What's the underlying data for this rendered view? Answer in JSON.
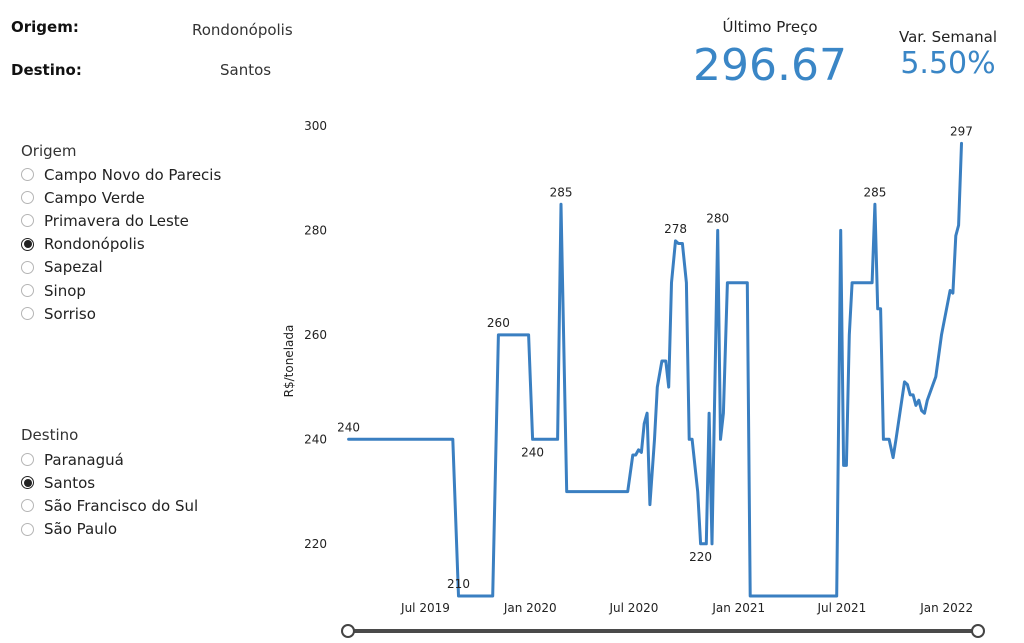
{
  "header": {
    "origin_label": "Origem:",
    "origin_value": "Rondonópolis",
    "destination_label": "Destino:",
    "destination_value": "Santos",
    "last_price_label": "Último Preço",
    "last_price_value": "296.67",
    "weekly_var_label": "Var. Semanal",
    "weekly_var_value": "5.50%"
  },
  "origin_group": {
    "title": "Origem",
    "options": [
      {
        "label": "Campo Novo do Parecis",
        "selected": false
      },
      {
        "label": "Campo Verde",
        "selected": false
      },
      {
        "label": "Primavera do Leste",
        "selected": false
      },
      {
        "label": "Rondonópolis",
        "selected": true
      },
      {
        "label": "Sapezal",
        "selected": false
      },
      {
        "label": "Sinop",
        "selected": false
      },
      {
        "label": "Sorriso",
        "selected": false
      }
    ]
  },
  "destination_group": {
    "title": "Destino",
    "options": [
      {
        "label": "Paranaguá",
        "selected": false
      },
      {
        "label": "Santos",
        "selected": true
      },
      {
        "label": "São Francisco do Sul",
        "selected": false
      },
      {
        "label": "São Paulo",
        "selected": false
      }
    ]
  },
  "colors": {
    "accent": "#3a86c6",
    "line": "#3a7fc1"
  },
  "chart_data": {
    "type": "line",
    "ylabel": "R$/tonelada",
    "xlabel": "",
    "ylim": [
      210,
      300
    ],
    "yticks": [
      220,
      240,
      260,
      280,
      300
    ],
    "xlim": [
      "2019-02-15",
      "2022-02-25"
    ],
    "xticks": [
      {
        "date": "2019-07-01",
        "label": "Jul 2019"
      },
      {
        "date": "2020-01-01",
        "label": "Jan 2020"
      },
      {
        "date": "2020-07-01",
        "label": "Jul 2020"
      },
      {
        "date": "2021-01-01",
        "label": "Jan 2021"
      },
      {
        "date": "2021-07-01",
        "label": "Jul 2021"
      },
      {
        "date": "2022-01-01",
        "label": "Jan 2022"
      }
    ],
    "grid": false,
    "series": [
      {
        "points": [
          [
            "2019-02-16",
            240
          ],
          [
            "2019-08-18",
            240
          ],
          [
            "2019-08-28",
            210
          ],
          [
            "2019-10-27",
            210
          ],
          [
            "2019-11-06",
            260
          ],
          [
            "2019-12-29",
            260
          ],
          [
            "2020-01-05",
            240
          ],
          [
            "2020-02-18",
            240
          ],
          [
            "2020-02-24",
            285
          ],
          [
            "2020-03-05",
            230
          ],
          [
            "2020-06-20",
            230
          ],
          [
            "2020-06-29",
            237
          ],
          [
            "2020-07-04",
            237
          ],
          [
            "2020-07-09",
            238
          ],
          [
            "2020-07-14",
            237.5
          ],
          [
            "2020-07-19",
            243
          ],
          [
            "2020-07-24",
            245
          ],
          [
            "2020-07-29",
            227.5
          ],
          [
            "2020-08-06",
            240
          ],
          [
            "2020-08-11",
            250
          ],
          [
            "2020-08-19",
            255
          ],
          [
            "2020-08-26",
            255
          ],
          [
            "2020-08-31",
            250
          ],
          [
            "2020-09-05",
            270
          ],
          [
            "2020-09-12",
            278
          ],
          [
            "2020-09-17",
            277.5
          ],
          [
            "2020-09-24",
            277.5
          ],
          [
            "2020-10-01",
            270
          ],
          [
            "2020-10-06",
            240
          ],
          [
            "2020-10-11",
            240
          ],
          [
            "2020-10-21",
            230
          ],
          [
            "2020-10-26",
            220
          ],
          [
            "2020-11-05",
            220
          ],
          [
            "2020-11-10",
            245
          ],
          [
            "2020-11-15",
            220
          ],
          [
            "2020-11-25",
            280
          ],
          [
            "2020-11-30",
            240
          ],
          [
            "2020-12-05",
            245
          ],
          [
            "2020-12-12",
            270
          ],
          [
            "2021-01-16",
            270
          ],
          [
            "2021-01-21",
            210
          ],
          [
            "2021-06-22",
            210
          ],
          [
            "2021-06-29",
            280
          ],
          [
            "2021-07-04",
            235
          ],
          [
            "2021-07-09",
            235
          ],
          [
            "2021-07-14",
            260
          ],
          [
            "2021-07-19",
            270
          ],
          [
            "2021-08-23",
            270
          ],
          [
            "2021-08-28",
            285
          ],
          [
            "2021-09-02",
            265
          ],
          [
            "2021-09-07",
            265
          ],
          [
            "2021-09-12",
            240
          ],
          [
            "2021-09-22",
            240
          ],
          [
            "2021-09-29",
            236.5
          ],
          [
            "2021-10-04",
            240
          ],
          [
            "2021-10-19",
            251
          ],
          [
            "2021-10-24",
            250.5
          ],
          [
            "2021-10-29",
            248.5
          ],
          [
            "2021-11-03",
            248.5
          ],
          [
            "2021-11-08",
            246.5
          ],
          [
            "2021-11-13",
            247.5
          ],
          [
            "2021-11-18",
            245.5
          ],
          [
            "2021-11-23",
            245
          ],
          [
            "2021-11-28",
            247.5
          ],
          [
            "2021-12-13",
            252
          ],
          [
            "2021-12-23",
            260
          ],
          [
            "2022-01-07",
            268.5
          ],
          [
            "2022-01-12",
            268
          ],
          [
            "2022-01-17",
            279
          ],
          [
            "2022-01-22",
            281
          ],
          [
            "2022-01-27",
            296.67
          ]
        ]
      }
    ],
    "annotations": [
      {
        "date": "2019-02-16",
        "value": 240,
        "label": "240",
        "pos": "above"
      },
      {
        "date": "2019-08-28",
        "value": 210,
        "label": "210",
        "pos": "above"
      },
      {
        "date": "2019-11-06",
        "value": 260,
        "label": "260",
        "pos": "above"
      },
      {
        "date": "2020-01-05",
        "value": 240,
        "label": "240",
        "pos": "below"
      },
      {
        "date": "2020-02-24",
        "value": 285,
        "label": "285",
        "pos": "above"
      },
      {
        "date": "2020-09-12",
        "value": 278,
        "label": "278",
        "pos": "above"
      },
      {
        "date": "2020-10-26",
        "value": 220,
        "label": "220",
        "pos": "below"
      },
      {
        "date": "2020-11-25",
        "value": 280,
        "label": "280",
        "pos": "above"
      },
      {
        "date": "2021-08-28",
        "value": 285,
        "label": "285",
        "pos": "above"
      },
      {
        "date": "2022-01-27",
        "value": 296.67,
        "label": "297",
        "pos": "above"
      }
    ],
    "range_slider": {
      "start": "2019-02-16",
      "end": "2022-01-27"
    }
  }
}
